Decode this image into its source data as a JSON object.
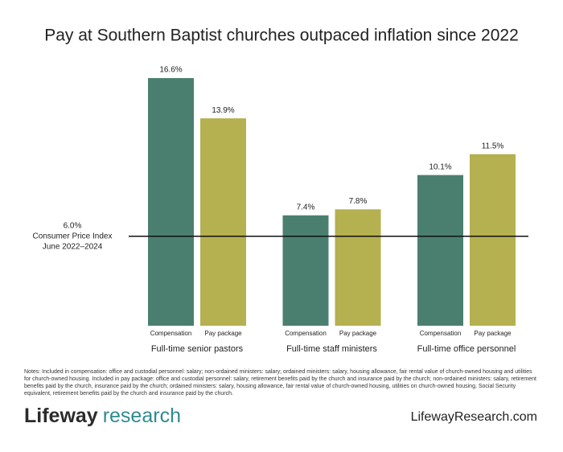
{
  "chart_data": {
    "type": "bar",
    "title": "Pay at Southern Baptist churches outpaced inflation since 2022",
    "categories": [
      "Full-time senior pastors",
      "Full-time staff ministers",
      "Full-time office personnel"
    ],
    "series": [
      {
        "name": "Compensation",
        "color": "#4a7f6f",
        "values": [
          16.6,
          7.4,
          10.1
        ],
        "value_labels": [
          "16.6%",
          "7.4%",
          "10.1%"
        ]
      },
      {
        "name": "Pay package",
        "color": "#b5b050",
        "values": [
          13.9,
          7.8,
          11.5
        ],
        "value_labels": [
          "13.9%",
          "7.8%",
          "11.5%"
        ]
      }
    ],
    "reference": {
      "value": 6.0,
      "label": "6.0%",
      "text": [
        "Consumer Price Index",
        "June 2022–2024"
      ]
    },
    "notes": "Notes: Included in compensation: office and custodial personnel: salary; non-ordained ministers: salary; ordained ministers: salary, housing allowance, fair rental value of church-owned housing and utilities for church-owned housing. Included in pay package: office and custodial personnel: salary, retirement benefits paid by the church and insurance paid by the church; non-ordained ministers: salary, retirement benefits paid by the church, insurance paid by the church; ordained ministers: salary, housing allowance, fair rental value of church-owned housing, utilities on church-owned housing, Social Security equivalent, retirement benefits paid by the church and insurance paid by the church.",
    "brand": [
      "Lifeway",
      "research"
    ],
    "url": "LifewayResearch.com"
  }
}
